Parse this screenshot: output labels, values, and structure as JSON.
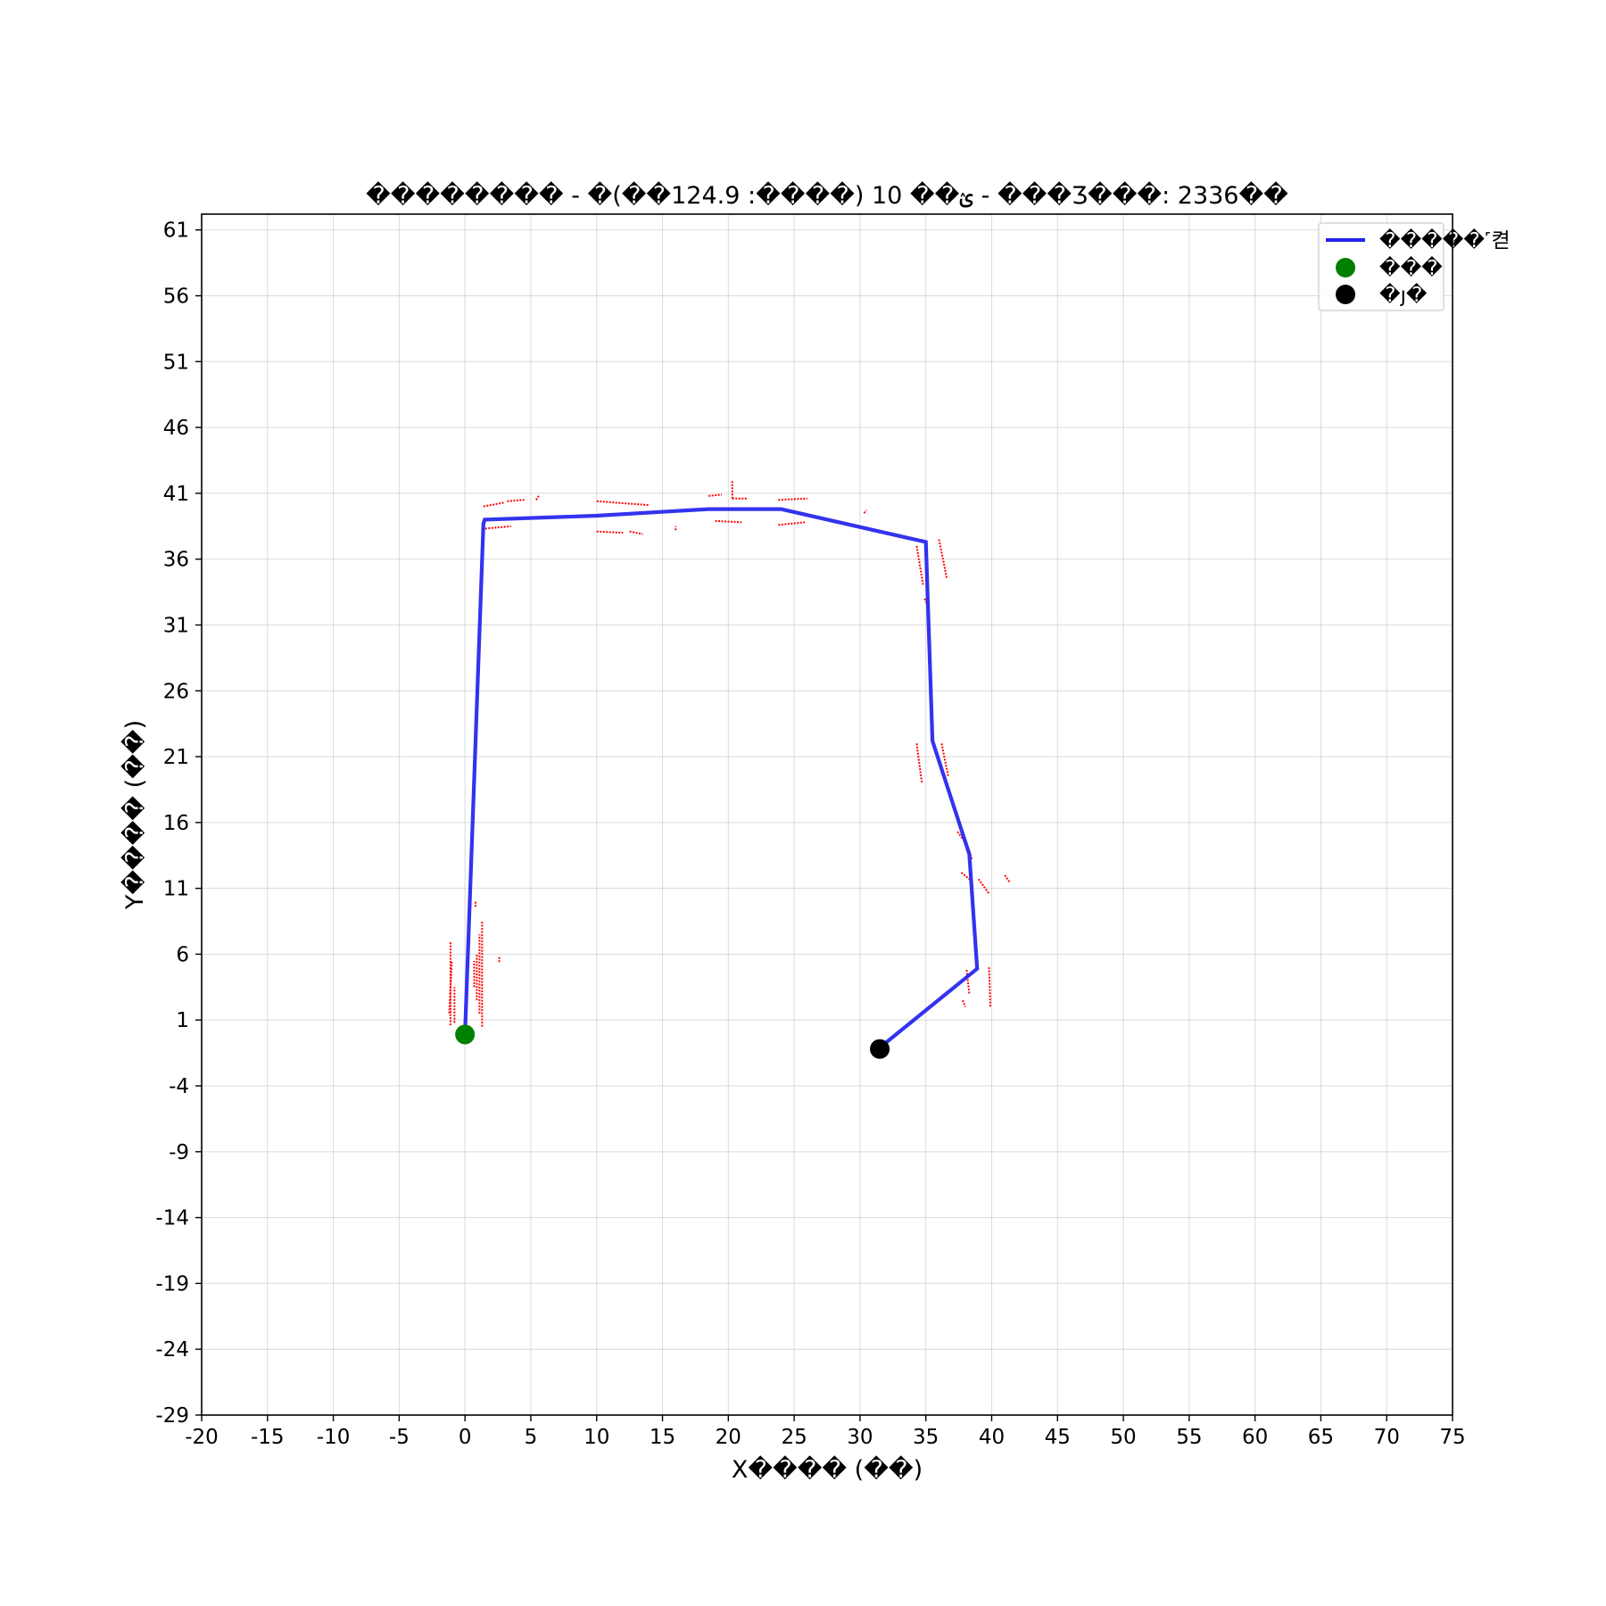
{
  "chart_data": {
    "type": "line",
    "title": "�������� - �ؽ�� 10 (����: 124.9��) - ���Ʒ���: 2336��",
    "xlabel": "X���� (��)",
    "ylabel": "Y���� (��)",
    "xlim": [
      -20,
      75
    ],
    "ylim": [
      -29,
      62.2
    ],
    "x_ticks": [
      -20,
      -15,
      -10,
      -5,
      0,
      5,
      10,
      15,
      20,
      25,
      30,
      35,
      40,
      45,
      50,
      55,
      60,
      65,
      70,
      75
    ],
    "y_ticks": [
      -29,
      -24,
      -19,
      -14,
      -9,
      -4,
      1,
      6,
      11,
      16,
      21,
      26,
      31,
      36,
      41,
      46,
      51,
      56,
      61
    ],
    "grid": true,
    "legend_placement": "top-right",
    "series": [
      {
        "name": "�����˹켣",
        "kind": "line",
        "color": "#2222ee",
        "points": [
          [
            0,
            0
          ],
          [
            1.4,
            38.7
          ],
          [
            1.5,
            39.0
          ],
          [
            10,
            39.3
          ],
          [
            18.5,
            39.8
          ],
          [
            24,
            39.8
          ],
          [
            35,
            37.3
          ],
          [
            35.5,
            22.2
          ],
          [
            38.3,
            13.6
          ],
          [
            38.9,
            4.9
          ],
          [
            31.5,
            -1.1
          ]
        ]
      },
      {
        "name": "���",
        "kind": "marker",
        "color": "#008000",
        "points": [
          [
            0,
            -0.1
          ]
        ]
      },
      {
        "name": "�յ�",
        "kind": "marker",
        "color": "#000000",
        "points": [
          [
            31.5,
            -1.2
          ]
        ]
      },
      {
        "name": "",
        "kind": "points",
        "color": "#ff0000",
        "segments": [
          [
            [
              -1.1,
              0.6
            ],
            [
              -1.1,
              7.0
            ]
          ],
          [
            [
              -1.2,
              1.5
            ],
            [
              -1.0,
              5.5
            ]
          ],
          [
            [
              -0.8,
              0.8
            ],
            [
              -0.8,
              3.5
            ]
          ],
          [
            [
              1.3,
              0.5
            ],
            [
              1.3,
              8.5
            ]
          ],
          [
            [
              1.1,
              1.5
            ],
            [
              1.1,
              7.5
            ]
          ],
          [
            [
              0.9,
              2.5
            ],
            [
              0.9,
              6.0
            ]
          ],
          [
            [
              0.7,
              3.5
            ],
            [
              0.7,
              5.5
            ]
          ],
          [
            [
              2.6,
              5.4
            ],
            [
              2.6,
              5.8
            ]
          ],
          [
            [
              0.8,
              9.6
            ],
            [
              0.8,
              10.0
            ]
          ],
          [
            [
              1.3,
              38.3
            ],
            [
              3.5,
              38.5
            ]
          ],
          [
            [
              1.4,
              40.0
            ],
            [
              3.0,
              40.3
            ]
          ],
          [
            [
              3.2,
              40.4
            ],
            [
              4.5,
              40.5
            ]
          ],
          [
            [
              5.4,
              40.5
            ],
            [
              5.6,
              40.8
            ]
          ],
          [
            [
              10.0,
              40.4
            ],
            [
              14.0,
              40.1
            ]
          ],
          [
            [
              10.0,
              38.1
            ],
            [
              12.0,
              38.0
            ]
          ],
          [
            [
              12.5,
              38.1
            ],
            [
              13.5,
              37.9
            ]
          ],
          [
            [
              16.0,
              38.2
            ],
            [
              16.0,
              38.5
            ]
          ],
          [
            [
              18.5,
              40.8
            ],
            [
              19.5,
              40.9
            ]
          ],
          [
            [
              20.3,
              40.6
            ],
            [
              21.5,
              40.6
            ]
          ],
          [
            [
              20.3,
              40.6
            ],
            [
              20.3,
              42.0
            ]
          ],
          [
            [
              19.0,
              38.9
            ],
            [
              21.0,
              38.8
            ]
          ],
          [
            [
              23.8,
              40.5
            ],
            [
              26.0,
              40.6
            ]
          ],
          [
            [
              23.8,
              38.6
            ],
            [
              25.8,
              38.8
            ]
          ],
          [
            [
              30.3,
              39.5
            ],
            [
              30.5,
              39.7
            ]
          ],
          [
            [
              34.3,
              37.0
            ],
            [
              34.8,
              34.0
            ]
          ],
          [
            [
              34.9,
              33.0
            ],
            [
              35.1,
              32.6
            ]
          ],
          [
            [
              36.0,
              37.5
            ],
            [
              36.6,
              34.5
            ]
          ],
          [
            [
              34.3,
              22.0
            ],
            [
              34.7,
              19.0
            ]
          ],
          [
            [
              36.2,
              22.0
            ],
            [
              36.7,
              19.5
            ]
          ],
          [
            [
              37.4,
              15.3
            ],
            [
              38.0,
              14.5
            ]
          ],
          [
            [
              38.3,
              13.8
            ],
            [
              38.5,
              13.2
            ]
          ],
          [
            [
              37.7,
              12.2
            ],
            [
              38.3,
              11.7
            ]
          ],
          [
            [
              39.0,
              11.7
            ],
            [
              39.8,
              10.6
            ]
          ],
          [
            [
              41.0,
              12.0
            ],
            [
              41.4,
              11.4
            ]
          ],
          [
            [
              38.1,
              4.8
            ],
            [
              38.3,
              3.0
            ]
          ],
          [
            [
              37.8,
              2.5
            ],
            [
              38.0,
              2.0
            ]
          ],
          [
            [
              39.8,
              5.0
            ],
            [
              39.9,
              2.0
            ]
          ]
        ]
      }
    ]
  }
}
